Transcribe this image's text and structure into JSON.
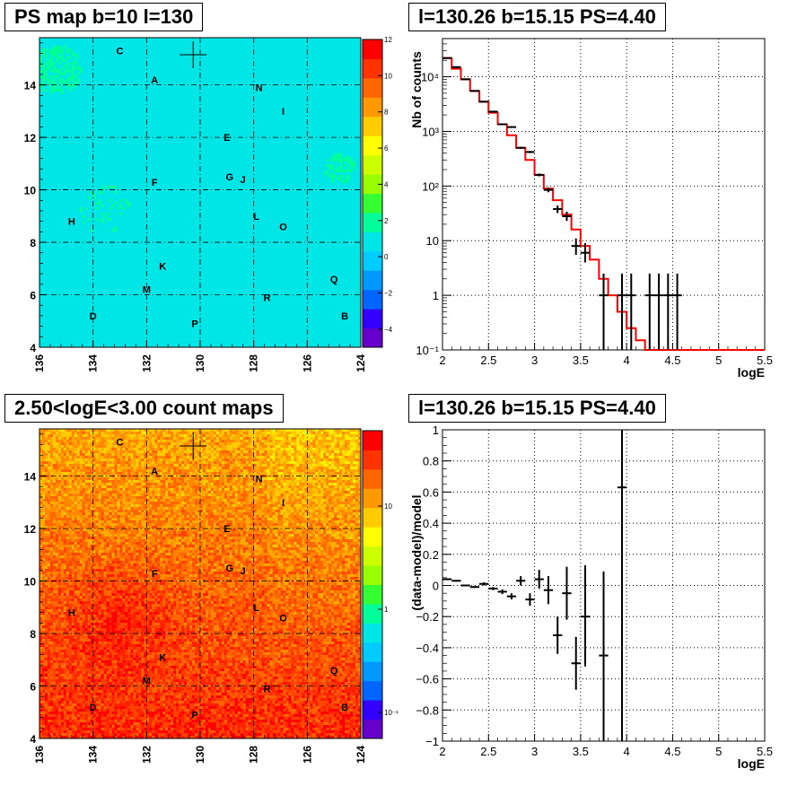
{
  "panels": {
    "ps_map": {
      "title": "PS map b=10 l=130",
      "x_ticks": [
        "136",
        "134",
        "132",
        "130",
        "128",
        "126",
        "124"
      ],
      "y_ticks": [
        "4",
        "6",
        "8",
        "10",
        "12",
        "14"
      ],
      "colorbar_ticks": [
        "12",
        "10",
        "8",
        "6",
        "4",
        "2",
        "0",
        "−2",
        "−4"
      ],
      "sources": [
        "C",
        "A",
        "N",
        "I",
        "E",
        "G",
        "J",
        "F",
        "H",
        "L",
        "O",
        "K",
        "Q",
        "M",
        "R",
        "D",
        "B",
        "P"
      ]
    },
    "count_map": {
      "title": "2.50<logE<3.00 count maps",
      "x_ticks": [
        "136",
        "134",
        "132",
        "130",
        "128",
        "126",
        "124"
      ],
      "y_ticks": [
        "4",
        "6",
        "8",
        "10",
        "12",
        "14"
      ],
      "colorbar_ticks": [
        "10",
        "1",
        "10⁻¹"
      ],
      "sources": [
        "C",
        "A",
        "N",
        "I",
        "E",
        "G",
        "J",
        "F",
        "H",
        "L",
        "O",
        "K",
        "Q",
        "M",
        "R",
        "D",
        "B",
        "P"
      ]
    },
    "spectrum": {
      "title": "l=130.26 b=15.15 PS=4.40"
    },
    "residual": {
      "title": "l=130.26 b=15.15 PS=4.40"
    }
  },
  "chart_data": [
    {
      "type": "heatmap",
      "title": "PS map b=10 l=130",
      "xlabel": "",
      "ylabel": "",
      "xlim": [
        136,
        124
      ],
      "ylim": [
        4,
        15.8
      ],
      "zlim": [
        -5,
        12
      ],
      "x_ticks": [
        136,
        134,
        132,
        130,
        128,
        126,
        124
      ],
      "y_ticks": [
        4,
        6,
        8,
        10,
        12,
        14
      ],
      "grid": true,
      "marker": {
        "l": 130.26,
        "b": 15.15
      },
      "sources": [
        {
          "name": "C",
          "l": 133.0,
          "b": 15.3
        },
        {
          "name": "A",
          "l": 131.7,
          "b": 14.2
        },
        {
          "name": "N",
          "l": 127.8,
          "b": 13.9
        },
        {
          "name": "I",
          "l": 126.9,
          "b": 13.0
        },
        {
          "name": "E",
          "l": 129.0,
          "b": 12.0
        },
        {
          "name": "G",
          "l": 128.9,
          "b": 10.5
        },
        {
          "name": "J",
          "l": 128.4,
          "b": 10.4
        },
        {
          "name": "F",
          "l": 131.7,
          "b": 10.3
        },
        {
          "name": "H",
          "l": 134.8,
          "b": 8.8
        },
        {
          "name": "L",
          "l": 127.9,
          "b": 9.0
        },
        {
          "name": "O",
          "l": 126.9,
          "b": 8.6
        },
        {
          "name": "K",
          "l": 131.4,
          "b": 7.1
        },
        {
          "name": "Q",
          "l": 125.0,
          "b": 6.6
        },
        {
          "name": "M",
          "l": 132.0,
          "b": 6.2
        },
        {
          "name": "R",
          "l": 127.5,
          "b": 5.9
        },
        {
          "name": "D",
          "l": 134.0,
          "b": 5.2
        },
        {
          "name": "B",
          "l": 124.6,
          "b": 5.2
        },
        {
          "name": "P",
          "l": 130.2,
          "b": 4.9
        }
      ]
    },
    {
      "type": "heatmap",
      "title": "2.50<logE<3.00 count maps",
      "xlabel": "",
      "ylabel": "",
      "xlim": [
        136,
        124
      ],
      "ylim": [
        4,
        15.8
      ],
      "zscale": "log",
      "x_ticks": [
        136,
        134,
        132,
        130,
        128,
        126,
        124
      ],
      "y_ticks": [
        4,
        6,
        8,
        10,
        12,
        14
      ],
      "grid": true,
      "marker": {
        "l": 130.26,
        "b": 15.15
      },
      "sources": [
        {
          "name": "C",
          "l": 133.0,
          "b": 15.3
        },
        {
          "name": "A",
          "l": 131.7,
          "b": 14.2
        },
        {
          "name": "N",
          "l": 127.8,
          "b": 13.9
        },
        {
          "name": "I",
          "l": 126.9,
          "b": 13.0
        },
        {
          "name": "E",
          "l": 129.0,
          "b": 12.0
        },
        {
          "name": "G",
          "l": 128.9,
          "b": 10.5
        },
        {
          "name": "J",
          "l": 128.4,
          "b": 10.4
        },
        {
          "name": "F",
          "l": 131.7,
          "b": 10.3
        },
        {
          "name": "H",
          "l": 134.8,
          "b": 8.8
        },
        {
          "name": "L",
          "l": 127.9,
          "b": 9.0
        },
        {
          "name": "O",
          "l": 126.9,
          "b": 8.6
        },
        {
          "name": "K",
          "l": 131.4,
          "b": 7.1
        },
        {
          "name": "Q",
          "l": 125.0,
          "b": 6.6
        },
        {
          "name": "M",
          "l": 132.0,
          "b": 6.2
        },
        {
          "name": "R",
          "l": 127.5,
          "b": 5.9
        },
        {
          "name": "D",
          "l": 134.0,
          "b": 5.2
        },
        {
          "name": "B",
          "l": 124.6,
          "b": 5.2
        },
        {
          "name": "P",
          "l": 130.2,
          "b": 4.9
        }
      ]
    },
    {
      "type": "line",
      "title": "l=130.26 b=15.15 PS=4.40",
      "xlabel": "logE",
      "ylabel": "Nb of counts",
      "xlim": [
        2,
        5.5
      ],
      "ylim": [
        0.1,
        50000
      ],
      "yscale": "log",
      "x_ticks": [
        2,
        2.5,
        3,
        3.5,
        4,
        4.5,
        5,
        5.5
      ],
      "y_ticks": [
        "10⁻¹",
        "1",
        "10",
        "10²",
        "10³",
        "10⁴"
      ],
      "grid": true,
      "series": [
        {
          "type": "step",
          "color": "#ff0000",
          "bin_edges": [
            2.0,
            2.1,
            2.2,
            2.3,
            2.4,
            2.5,
            2.6,
            2.7,
            2.8,
            2.9,
            3.0,
            3.1,
            3.2,
            3.3,
            3.4,
            3.5,
            3.6,
            3.7,
            3.8,
            3.9,
            4.0,
            4.1,
            4.2,
            5.5
          ],
          "values": [
            22000,
            14000,
            9000,
            5500,
            3500,
            2200,
            1350,
            850,
            500,
            300,
            160,
            90,
            55,
            30,
            16,
            8,
            4.5,
            2.0,
            1.0,
            0.5,
            0.25,
            0.15,
            0.1
          ]
        },
        {
          "type": "points",
          "color": "#000000",
          "points": [
            {
              "x": 2.05,
              "y": 22000,
              "ylo": 21800,
              "yhi": 22200
            },
            {
              "x": 2.15,
              "y": 15000,
              "ylo": 14800,
              "yhi": 15200
            },
            {
              "x": 2.25,
              "y": 9000,
              "ylo": 8900,
              "yhi": 9100
            },
            {
              "x": 2.35,
              "y": 5500,
              "ylo": 5400,
              "yhi": 5600
            },
            {
              "x": 2.45,
              "y": 3500,
              "ylo": 3400,
              "yhi": 3600
            },
            {
              "x": 2.55,
              "y": 2300,
              "ylo": 2250,
              "yhi": 2350
            },
            {
              "x": 2.65,
              "y": 1350,
              "ylo": 1320,
              "yhi": 1380
            },
            {
              "x": 2.75,
              "y": 1200,
              "ylo": 1160,
              "yhi": 1240
            },
            {
              "x": 2.85,
              "y": 500,
              "ylo": 480,
              "yhi": 520
            },
            {
              "x": 2.95,
              "y": 420,
              "ylo": 400,
              "yhi": 440
            },
            {
              "x": 3.05,
              "y": 160,
              "ylo": 150,
              "yhi": 170
            },
            {
              "x": 3.15,
              "y": 85,
              "ylo": 77,
              "yhi": 94
            },
            {
              "x": 3.25,
              "y": 38,
              "ylo": 32,
              "yhi": 44
            },
            {
              "x": 3.35,
              "y": 28,
              "ylo": 23,
              "yhi": 34
            },
            {
              "x": 3.45,
              "y": 8,
              "ylo": 5.5,
              "yhi": 11
            },
            {
              "x": 3.55,
              "y": 6,
              "ylo": 4,
              "yhi": 9
            },
            {
              "x": 3.75,
              "y": 1,
              "ylo": 0.1,
              "yhi": 2.5
            },
            {
              "x": 3.95,
              "y": 1,
              "ylo": 0.1,
              "yhi": 2.5
            },
            {
              "x": 4.05,
              "y": 1,
              "ylo": 0.1,
              "yhi": 2.5
            },
            {
              "x": 4.25,
              "y": 1,
              "ylo": 0.1,
              "yhi": 2.5
            },
            {
              "x": 4.35,
              "y": 1,
              "ylo": 0.1,
              "yhi": 2.5
            },
            {
              "x": 4.45,
              "y": 1,
              "ylo": 0.1,
              "yhi": 2.5
            },
            {
              "x": 4.55,
              "y": 1,
              "ylo": 0.1,
              "yhi": 2.5
            }
          ]
        }
      ]
    },
    {
      "type": "scatter",
      "title": "l=130.26 b=15.15 PS=4.40",
      "xlabel": "logE",
      "ylabel": "(data-model)/model",
      "xlim": [
        2,
        5.5
      ],
      "ylim": [
        -1,
        1
      ],
      "x_ticks": [
        2,
        2.5,
        3,
        3.5,
        4,
        4.5,
        5,
        5.5
      ],
      "y_ticks": [
        -1,
        -0.8,
        -0.6,
        -0.4,
        -0.2,
        0,
        0.2,
        0.4,
        0.6,
        0.8,
        1
      ],
      "grid": true,
      "series": [
        {
          "color": "#000000",
          "points": [
            {
              "x": 2.05,
              "y": 0.04,
              "ylo": 0.035,
              "yhi": 0.045
            },
            {
              "x": 2.15,
              "y": 0.03,
              "ylo": 0.025,
              "yhi": 0.035
            },
            {
              "x": 2.25,
              "y": 0.0,
              "ylo": -0.005,
              "yhi": 0.005
            },
            {
              "x": 2.35,
              "y": -0.01,
              "ylo": -0.015,
              "yhi": -0.005
            },
            {
              "x": 2.45,
              "y": 0.01,
              "ylo": 0.0,
              "yhi": 0.02
            },
            {
              "x": 2.55,
              "y": -0.02,
              "ylo": -0.03,
              "yhi": -0.01
            },
            {
              "x": 2.65,
              "y": -0.04,
              "ylo": -0.055,
              "yhi": -0.025
            },
            {
              "x": 2.75,
              "y": -0.07,
              "ylo": -0.09,
              "yhi": -0.05
            },
            {
              "x": 2.85,
              "y": 0.03,
              "ylo": 0.0,
              "yhi": 0.06
            },
            {
              "x": 2.95,
              "y": -0.09,
              "ylo": -0.13,
              "yhi": -0.05
            },
            {
              "x": 3.05,
              "y": 0.04,
              "ylo": -0.02,
              "yhi": 0.1
            },
            {
              "x": 3.15,
              "y": -0.03,
              "ylo": -0.12,
              "yhi": 0.06
            },
            {
              "x": 3.25,
              "y": -0.32,
              "ylo": -0.44,
              "yhi": -0.2
            },
            {
              "x": 3.35,
              "y": -0.05,
              "ylo": -0.22,
              "yhi": 0.12
            },
            {
              "x": 3.45,
              "y": -0.5,
              "ylo": -0.67,
              "yhi": -0.33
            },
            {
              "x": 3.55,
              "y": -0.2,
              "ylo": -0.52,
              "yhi": 0.13
            },
            {
              "x": 3.75,
              "y": -0.45,
              "ylo": -1.0,
              "yhi": 0.09
            },
            {
              "x": 3.95,
              "y": 0.63,
              "ylo": -1.0,
              "yhi": 1.0
            }
          ]
        }
      ]
    }
  ]
}
